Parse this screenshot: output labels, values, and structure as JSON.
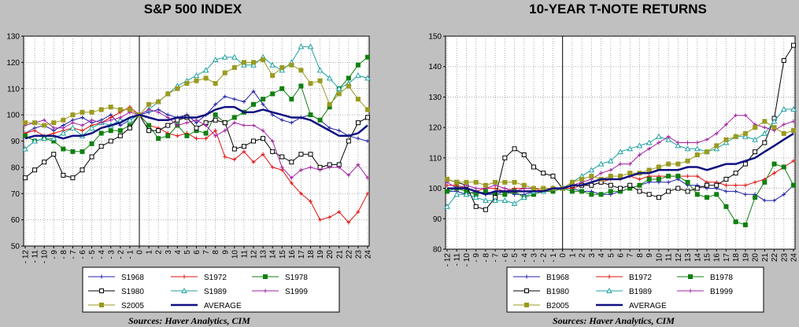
{
  "charts": [
    {
      "id": "left",
      "title": "S&P 500 INDEX",
      "source": "Sources:  Haver Analytics, CIM"
    },
    {
      "id": "right",
      "title": "10-YEAR T-NOTE RETURNS",
      "source": "Sources:  Haver Analytics, CIM"
    }
  ],
  "chart_data": [
    {
      "type": "line",
      "title": "S&P 500 INDEX",
      "xlabel": "",
      "ylabel": "",
      "x": [
        -12,
        -11,
        -10,
        -9,
        -8,
        -7,
        -6,
        -5,
        -4,
        -3,
        -2,
        -1,
        0,
        1,
        2,
        3,
        4,
        5,
        6,
        7,
        8,
        9,
        10,
        11,
        12,
        13,
        14,
        15,
        16,
        17,
        18,
        19,
        20,
        21,
        22,
        23,
        24
      ],
      "ylim": [
        50,
        130
      ],
      "yticks": [
        50,
        60,
        70,
        80,
        90,
        100,
        110,
        120,
        130
      ],
      "grid": true,
      "legend_position": "bottom",
      "series": [
        {
          "name": "S1968",
          "color": "#1f1fa8",
          "marker": "plus",
          "values": [
            93,
            95,
            96,
            94,
            96,
            98,
            99,
            97,
            98,
            100,
            96,
            98,
            100,
            101,
            102,
            100,
            99,
            100,
            97,
            100,
            104,
            107,
            106,
            105,
            109,
            104,
            100,
            98,
            97,
            99,
            100,
            98,
            95,
            94,
            92,
            91,
            90
          ]
        },
        {
          "name": "S1972",
          "color": "#e01010",
          "marker": "plus",
          "values": [
            93,
            94,
            92,
            93,
            94,
            95,
            94,
            96,
            97,
            99,
            101,
            103,
            100,
            96,
            95,
            93,
            92,
            93,
            91,
            91,
            94,
            84,
            83,
            86,
            82,
            85,
            80,
            79,
            74,
            70,
            67,
            60,
            61,
            63,
            59,
            63,
            70
          ]
        },
        {
          "name": "S1978",
          "color": "#108010",
          "marker": "square-filled",
          "values": [
            92,
            90,
            91,
            90,
            87,
            86,
            86,
            89,
            93,
            94,
            94,
            96,
            100,
            96,
            91,
            92,
            96,
            92,
            94,
            93,
            100,
            97,
            99,
            101,
            104,
            106,
            108,
            110,
            106,
            111,
            100,
            98,
            103,
            110,
            114,
            119,
            122
          ]
        },
        {
          "name": "S1980",
          "color": "#000000",
          "marker": "square-open",
          "values": [
            76,
            79,
            82,
            85,
            77,
            76,
            79,
            84,
            88,
            90,
            92,
            95,
            100,
            94,
            94,
            96,
            98,
            99,
            95,
            97,
            98,
            97,
            87,
            88,
            90,
            91,
            86,
            84,
            82,
            85,
            85,
            80,
            81,
            81,
            90,
            97,
            99
          ]
        },
        {
          "name": "S1989",
          "color": "#20a0a0",
          "marker": "triangle-open",
          "values": [
            87,
            90,
            91,
            91,
            93,
            95,
            92,
            95,
            97,
            96,
            98,
            98,
            100,
            102,
            105,
            108,
            111,
            113,
            115,
            117,
            121,
            122,
            122,
            119,
            119,
            122,
            119,
            117,
            120,
            126,
            126,
            117,
            114,
            110,
            112,
            115,
            114
          ]
        },
        {
          "name": "S1999",
          "color": "#a020a0",
          "marker": "plus",
          "values": [
            96,
            97,
            98,
            95,
            95,
            97,
            96,
            98,
            97,
            98,
            99,
            101,
            100,
            102,
            101,
            99,
            96,
            97,
            98,
            96,
            92,
            94,
            97,
            96,
            96,
            94,
            90,
            80,
            76,
            79,
            80,
            79,
            80,
            80,
            77,
            81,
            76
          ]
        },
        {
          "name": "S2005",
          "color": "#9a9a20",
          "marker": "square-filled",
          "values": [
            97,
            97,
            96,
            97,
            98,
            100,
            101,
            101,
            102,
            103,
            102,
            102,
            100,
            104,
            105,
            108,
            110,
            112,
            113,
            114,
            112,
            116,
            118,
            120,
            120,
            121,
            115,
            118,
            119,
            117,
            112,
            113,
            104,
            108,
            111,
            106,
            102
          ]
        },
        {
          "name": "AVERAGE",
          "color": "#101080",
          "marker": "none",
          "width": 2.5,
          "values": [
            91,
            92,
            92,
            92,
            91,
            92,
            92,
            93,
            95,
            96,
            97,
            99,
            100,
            99,
            98,
            98,
            99,
            99,
            99,
            100,
            102,
            103,
            103,
            101,
            101,
            102,
            101,
            100,
            99,
            99,
            98,
            96,
            94,
            92,
            92,
            93,
            96
          ]
        }
      ]
    },
    {
      "type": "line",
      "title": "10-YEAR T-NOTE RETURNS",
      "xlabel": "",
      "ylabel": "",
      "x": [
        -12,
        -11,
        -10,
        -9,
        -8,
        -7,
        -6,
        -5,
        -4,
        -3,
        -2,
        -1,
        0,
        1,
        2,
        3,
        4,
        5,
        6,
        7,
        8,
        9,
        10,
        11,
        12,
        13,
        14,
        15,
        16,
        17,
        18,
        19,
        20,
        21,
        22,
        23,
        24
      ],
      "ylim": [
        80,
        150
      ],
      "yticks": [
        80,
        90,
        100,
        110,
        120,
        130,
        140,
        150
      ],
      "grid": true,
      "legend_position": "bottom",
      "series": [
        {
          "name": "B1968",
          "color": "#1f1fa8",
          "marker": "plus",
          "values": [
            99,
            99,
            98,
            99,
            98,
            98,
            99,
            98,
            98,
            99,
            99,
            100,
            100,
            100,
            99,
            99,
            98,
            98,
            99,
            100,
            101,
            102,
            102,
            102,
            103,
            101,
            101,
            100,
            100,
            99,
            99,
            98,
            98,
            96,
            96,
            98,
            101
          ]
        },
        {
          "name": "B1972",
          "color": "#e01010",
          "marker": "plus",
          "values": [
            101,
            101,
            100,
            99,
            100,
            100,
            99,
            100,
            100,
            100,
            99,
            99,
            100,
            100,
            101,
            101,
            102,
            103,
            103,
            104,
            103,
            104,
            104,
            104,
            104,
            104,
            104,
            102,
            102,
            101,
            101,
            101,
            102,
            103,
            105,
            107,
            109
          ]
        },
        {
          "name": "B1978",
          "color": "#108010",
          "marker": "square-filled",
          "values": [
            99,
            100,
            99,
            98,
            99,
            98,
            98,
            99,
            97,
            98,
            99,
            99,
            100,
            99,
            99,
            98,
            98,
            99,
            99,
            100,
            101,
            103,
            103,
            104,
            104,
            102,
            98,
            97,
            98,
            94,
            89,
            88,
            97,
            102,
            108,
            107,
            101
          ]
        },
        {
          "name": "B1980",
          "color": "#000000",
          "marker": "square-open",
          "values": [
            103,
            102,
            101,
            94,
            93,
            97,
            110,
            113,
            111,
            107,
            105,
            104,
            100,
            101,
            101,
            101,
            102,
            101,
            100,
            101,
            99,
            98,
            97,
            99,
            100,
            99,
            100,
            101,
            101,
            103,
            105,
            108,
            112,
            115,
            123,
            142,
            147
          ]
        },
        {
          "name": "B1989",
          "color": "#20a0a0",
          "marker": "triangle-open",
          "values": [
            94,
            98,
            98,
            97,
            96,
            96,
            96,
            95,
            97,
            99,
            99,
            100,
            100,
            102,
            104,
            106,
            108,
            109,
            112,
            113,
            114,
            115,
            117,
            116,
            114,
            113,
            113,
            112,
            113,
            115,
            117,
            117,
            116,
            118,
            122,
            126,
            126
          ]
        },
        {
          "name": "B1999",
          "color": "#a020a0",
          "marker": "plus",
          "values": [
            102,
            100,
            101,
            100,
            100,
            101,
            100,
            99,
            100,
            100,
            100,
            100,
            100,
            101,
            102,
            103,
            105,
            106,
            108,
            108,
            111,
            113,
            115,
            117,
            115,
            115,
            115,
            116,
            118,
            121,
            124,
            124,
            121,
            120,
            119,
            121,
            122
          ]
        },
        {
          "name": "B2005",
          "color": "#9a9a20",
          "marker": "square-filled",
          "values": [
            103,
            102,
            102,
            102,
            101,
            102,
            102,
            102,
            101,
            100,
            100,
            100,
            100,
            102,
            103,
            104,
            103,
            104,
            104,
            105,
            105,
            106,
            107,
            108,
            108,
            109,
            111,
            112,
            114,
            116,
            117,
            118,
            120,
            122,
            120,
            118,
            119
          ]
        },
        {
          "name": "AVERAGE",
          "color": "#101080",
          "marker": "none",
          "width": 2.5,
          "values": [
            100,
            100,
            100,
            99,
            98,
            99,
            99,
            99,
            99,
            99,
            99,
            100,
            100,
            101,
            101,
            102,
            103,
            103,
            103,
            104,
            105,
            105,
            106,
            106,
            106,
            107,
            107,
            106,
            107,
            108,
            108,
            109,
            110,
            112,
            114,
            116,
            118
          ]
        }
      ]
    }
  ]
}
